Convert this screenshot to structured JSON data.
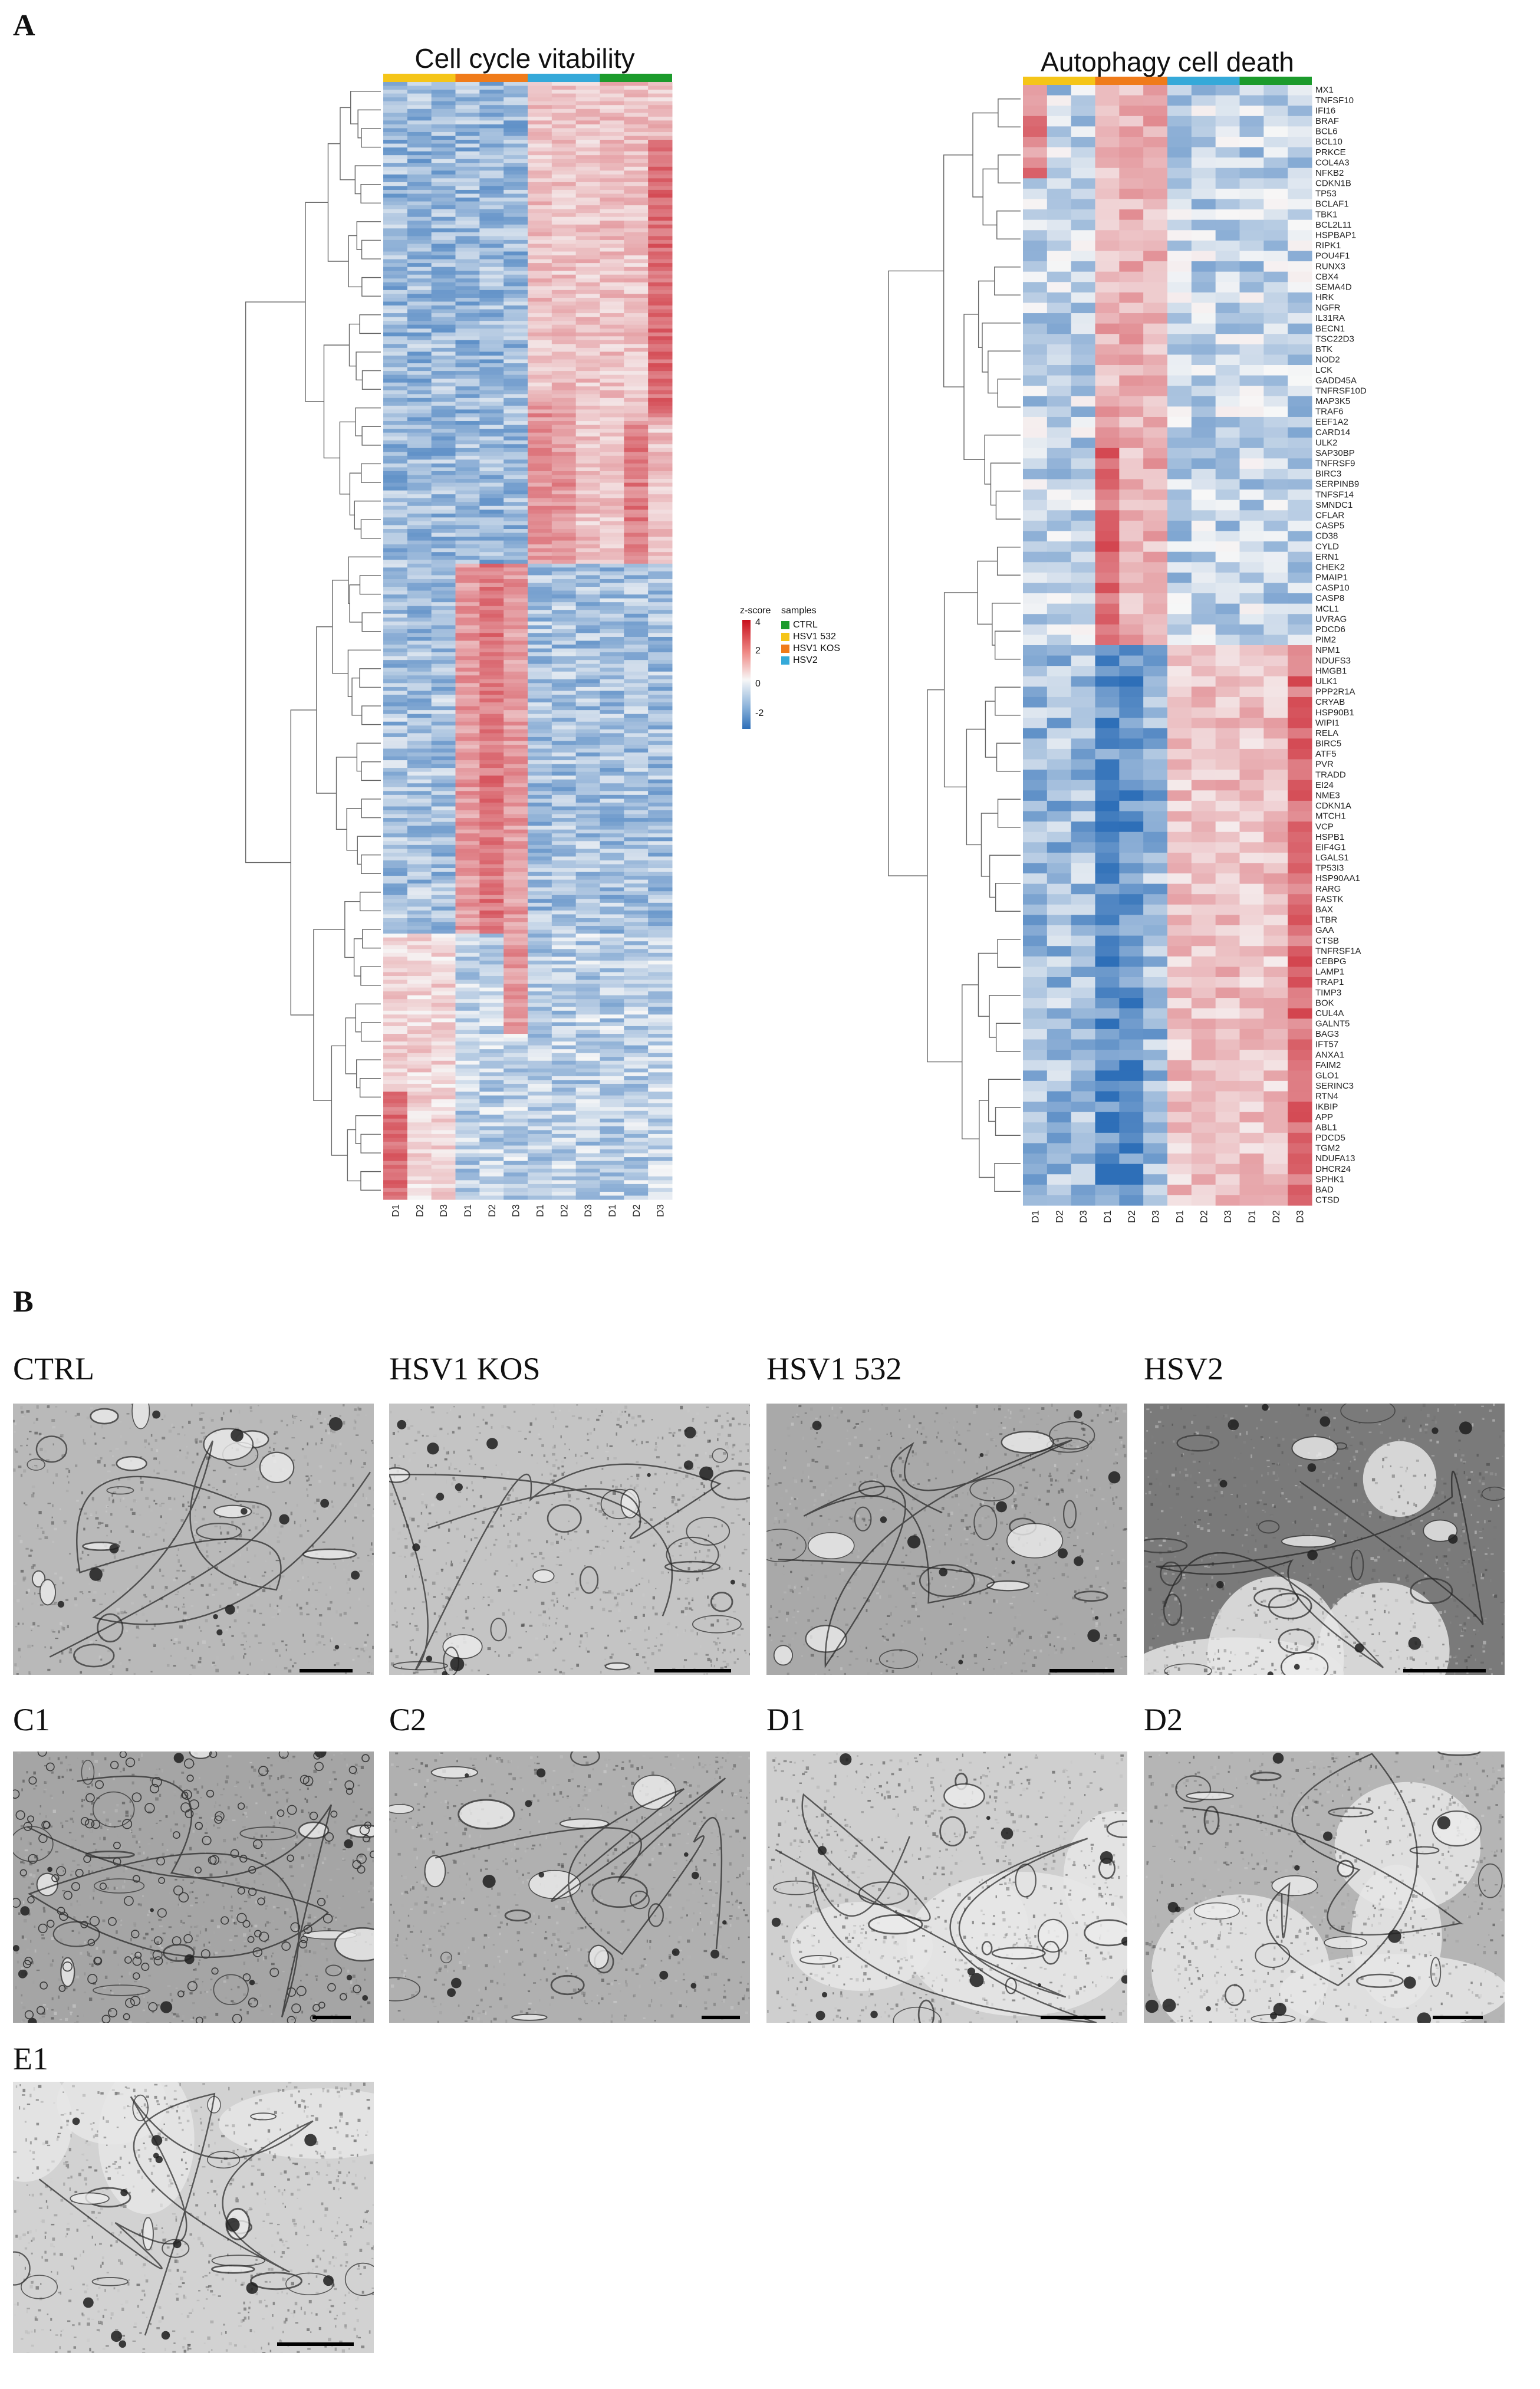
{
  "panel_a": {
    "letter": "A"
  },
  "panel_b": {
    "letter": "B"
  },
  "heatmap_left": {
    "title": "Cell cycle vitability",
    "columns": [
      "D1",
      "D2",
      "D3",
      "D1",
      "D2",
      "D3",
      "D1",
      "D2",
      "D3",
      "D1",
      "D2",
      "D3"
    ],
    "group_colors": [
      "#f5c518",
      "#f07b1a",
      "#35a9d9",
      "#1c9b2c"
    ],
    "rows": 290
  },
  "heatmap_right": {
    "title": "Autophagy cell death",
    "columns": [
      "D1",
      "D2",
      "D3",
      "D1",
      "D2",
      "D3",
      "D1",
      "D2",
      "D3",
      "D1",
      "D2",
      "D3"
    ],
    "group_colors": [
      "#f5c518",
      "#f07b1a",
      "#35a9d9",
      "#1c9b2c"
    ],
    "genes": [
      "MX1",
      "TNFSF10",
      "IFI16",
      "BRAF",
      "BCL6",
      "BCL10",
      "PRKCE",
      "COL4A3",
      "NFKB2",
      "CDKN1B",
      "TP53",
      "BCLAF1",
      "TBK1",
      "BCL2L11",
      "HSPBAP1",
      "RIPK1",
      "POU4F1",
      "RUNX3",
      "CBX4",
      "SEMA4D",
      "HRK",
      "NGFR",
      "IL31RA",
      "BECN1",
      "TSC22D3",
      "BTK",
      "NOD2",
      "LCK",
      "GADD45A",
      "TNFRSF10D",
      "MAP3K5",
      "TRAF6",
      "EEF1A2",
      "CARD14",
      "ULK2",
      "SAP30BP",
      "TNFRSF9",
      "BIRC3",
      "SERPINB9",
      "TNFSF14",
      "SMNDC1",
      "CFLAR",
      "CASP5",
      "CD38",
      "CYLD",
      "ERN1",
      "CHEK2",
      "PMAIP1",
      "CASP10",
      "CASP8",
      "MCL1",
      "UVRAG",
      "PDCD6",
      "PIM2",
      "NPM1",
      "NDUFS3",
      "HMGB1",
      "ULK1",
      "PPP2R1A",
      "CRYAB",
      "HSP90B1",
      "WIPI1",
      "RELA",
      "BIRC5",
      "ATF5",
      "PVR",
      "TRADD",
      "EI24",
      "NME3",
      "CDKN1A",
      "MTCH1",
      "VCP",
      "HSPB1",
      "EIF4G1",
      "LGALS1",
      "TP53I3",
      "HSP90AA1",
      "RARG",
      "FASTK",
      "BAX",
      "LTBR",
      "GAA",
      "CTSB",
      "TNFRSF1A",
      "CEBPG",
      "LAMP1",
      "TRAP1",
      "TIMP3",
      "BOK",
      "CUL4A",
      "GALNT5",
      "BAG3",
      "IFT57",
      "ANXA1",
      "FAIM2",
      "GLO1",
      "SERINC3",
      "RTN4",
      "IKBIP",
      "APP",
      "ABL1",
      "PDCD5",
      "TGM2",
      "NDUFA13",
      "DHCR24",
      "SPHK1",
      "BAD",
      "CTSD"
    ]
  },
  "legend": {
    "zscore_title": "z-score",
    "zscore_ticks": [
      "4",
      "2",
      "0",
      "-2"
    ],
    "samples_title": "samples",
    "samples": [
      {
        "name": "CTRL",
        "color": "#1c9b2c"
      },
      {
        "name": "HSV1 532",
        "color": "#f5c518"
      },
      {
        "name": "HSV1 KOS",
        "color": "#f07b1a"
      },
      {
        "name": "HSV2",
        "color": "#35a9d9"
      }
    ]
  },
  "em_panels": [
    {
      "label": "CTRL"
    },
    {
      "label": "HSV1 KOS"
    },
    {
      "label": "HSV1 532"
    },
    {
      "label": "HSV2"
    },
    {
      "label": "C1"
    },
    {
      "label": "C2"
    },
    {
      "label": "D1"
    },
    {
      "label": "D2"
    },
    {
      "label": "E1"
    }
  ]
}
